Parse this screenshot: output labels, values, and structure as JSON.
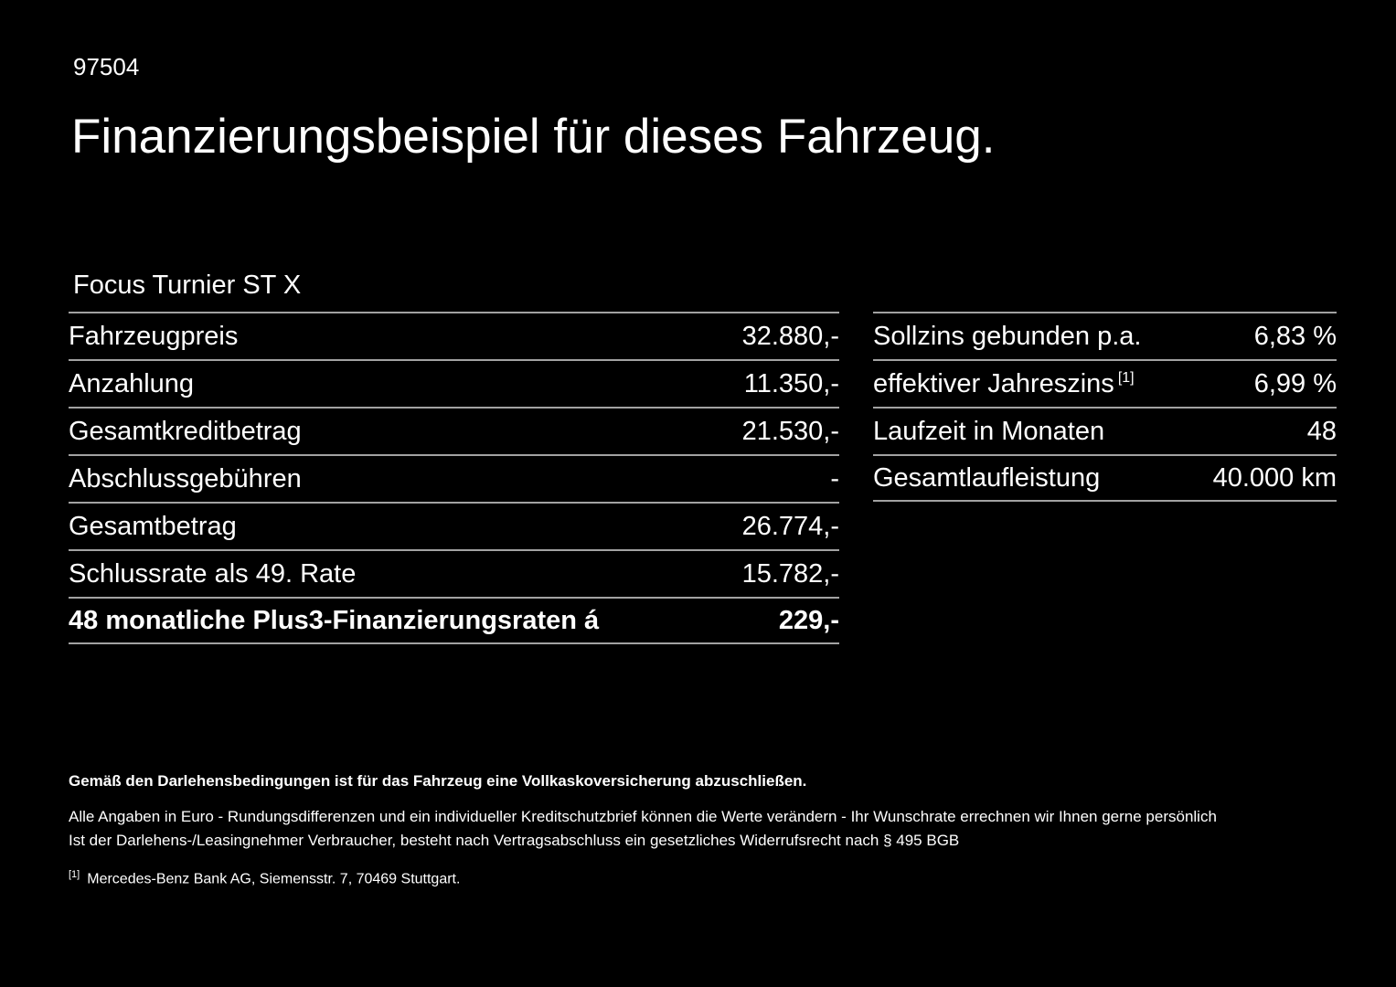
{
  "page": {
    "doc_number": "97504",
    "title": "Finanzierungsbeispiel für dieses Fahrzeug.",
    "vehicle_name": "Focus Turnier ST X"
  },
  "left_table": {
    "rows": [
      {
        "label": "Fahrzeugpreis",
        "value": "32.880,-"
      },
      {
        "label": "Anzahlung",
        "value": "11.350,-"
      },
      {
        "label": "Gesamtkreditbetrag",
        "value": "21.530,-"
      },
      {
        "label": "Abschlussgebühren",
        "value": "-"
      },
      {
        "label": "Gesamtbetrag",
        "value": "26.774,-"
      },
      {
        "label": "Schlussrate als 49. Rate",
        "value": "15.782,-"
      },
      {
        "label": "48 monatliche Plus3-Finanzierungsraten á",
        "value": "229,-"
      }
    ]
  },
  "right_table": {
    "rows": [
      {
        "label": "Sollzins gebunden p.a.",
        "value": "6,83 %"
      },
      {
        "label": "effektiver Jahreszins",
        "footnote_marker": "[1]",
        "value": "6,99 %"
      },
      {
        "label": "Laufzeit in Monaten",
        "value": "48"
      },
      {
        "label": "Gesamtlaufleistung",
        "value": "40.000 km"
      }
    ]
  },
  "footer": {
    "line1": "Gemäß den Darlehensbedingungen ist für das Fahrzeug eine Vollkaskoversicherung abzuschließen.",
    "line2": "Alle Angaben in Euro - Rundungsdifferenzen und ein individueller Kreditschutzbrief können die Werte verändern - Ihr Wunschrate errechnen wir Ihnen gerne persönlich",
    "line3": "Ist der Darlehens-/Leasingnehmer Verbraucher, besteht nach Vertragsabschluss ein gesetzliches Widerrufsrecht nach § 495 BGB",
    "footnote_marker": "[1]",
    "footnote_text": "Mercedes-Benz Bank AG, Siemensstr. 7, 70469 Stuttgart."
  },
  "colors": {
    "background": "#000000",
    "text": "#ffffff",
    "divider": "#a2a2a2"
  }
}
